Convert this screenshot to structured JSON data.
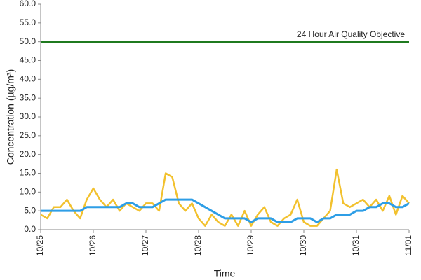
{
  "chart_data": {
    "type": "line",
    "ylabel": "Concentration (µg/m³)",
    "xlabel": "Time",
    "x": [
      0,
      0.125,
      0.25,
      0.375,
      0.5,
      0.625,
      0.75,
      0.875,
      1,
      1.125,
      1.25,
      1.375,
      1.5,
      1.625,
      1.75,
      1.875,
      2,
      2.125,
      2.25,
      2.375,
      2.5,
      2.625,
      2.75,
      2.875,
      3,
      3.125,
      3.25,
      3.375,
      3.5,
      3.625,
      3.75,
      3.875,
      4,
      4.125,
      4.25,
      4.375,
      4.5,
      4.625,
      4.75,
      4.875,
      5,
      5.125,
      5.25,
      5.375,
      5.5,
      5.625,
      5.75,
      5.875,
      6,
      6.125,
      6.25,
      6.375,
      6.5,
      6.625,
      6.75,
      6.875,
      7
    ],
    "series": [
      {
        "color": "#f2c12e",
        "width": 2.5,
        "values": [
          4,
          3,
          6,
          6,
          8,
          5,
          3,
          8,
          11,
          8,
          6,
          8,
          5,
          7,
          6,
          5,
          7,
          7,
          5,
          15,
          14,
          7,
          5,
          7,
          3,
          1,
          4,
          2,
          1,
          4,
          1,
          5,
          1,
          4,
          6,
          2,
          1,
          3,
          4,
          8,
          2,
          1,
          1,
          3,
          5,
          16,
          7,
          6,
          7,
          8,
          6,
          8,
          5,
          9,
          4,
          9,
          7
        ]
      },
      {
        "color": "#2e9ee6",
        "width": 3,
        "values": [
          5,
          5,
          5,
          5,
          5,
          5,
          5,
          6,
          6,
          6,
          6,
          6,
          6,
          7,
          7,
          6,
          6,
          6,
          7,
          8,
          8,
          8,
          8,
          8,
          7,
          6,
          5,
          4,
          3,
          3,
          3,
          3,
          2,
          3,
          3,
          3,
          2,
          2,
          2,
          3,
          3,
          3,
          2,
          3,
          3,
          4,
          4,
          4,
          5,
          5,
          6,
          6,
          7,
          7,
          6,
          6,
          7
        ]
      }
    ],
    "reference_line": {
      "value": 50,
      "label": "24 Hour Air Quality Objective",
      "color": "#1f7a1f"
    },
    "xlim": [
      0,
      7
    ],
    "xticks": [
      {
        "value": 0,
        "label": "10/25"
      },
      {
        "value": 1,
        "label": "10/26"
      },
      {
        "value": 2,
        "label": "10/27"
      },
      {
        "value": 3,
        "label": "10/28"
      },
      {
        "value": 4,
        "label": "10/29"
      },
      {
        "value": 5,
        "label": "10/30"
      },
      {
        "value": 6,
        "label": "10/31"
      },
      {
        "value": 7,
        "label": "11/01"
      }
    ],
    "ylim": [
      0,
      60
    ],
    "yticks": [
      {
        "value": 0,
        "label": "0.0"
      },
      {
        "value": 5,
        "label": "5.0"
      },
      {
        "value": 10,
        "label": "10.0"
      },
      {
        "value": 15,
        "label": "15.0"
      },
      {
        "value": 20,
        "label": "20.0"
      },
      {
        "value": 25,
        "label": "25.0"
      },
      {
        "value": 30,
        "label": "30.0"
      },
      {
        "value": 35,
        "label": "35.0"
      },
      {
        "value": 40,
        "label": "40.0"
      },
      {
        "value": 45,
        "label": "45.0"
      },
      {
        "value": 50,
        "label": "50.0"
      },
      {
        "value": 55,
        "label": "55.0"
      },
      {
        "value": 60,
        "label": "60.0"
      }
    ],
    "grid": false
  }
}
